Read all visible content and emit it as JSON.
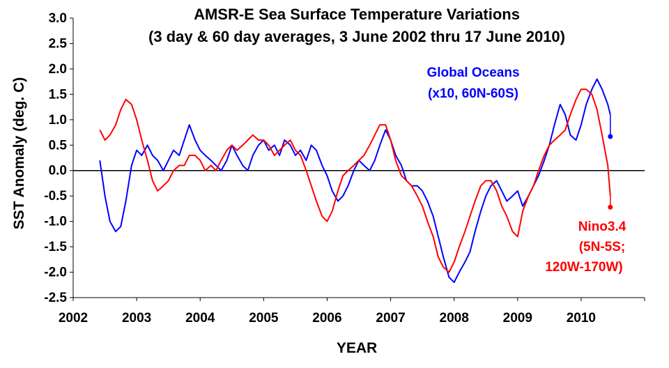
{
  "chart_data": {
    "type": "line",
    "title": "AMSR-E Sea Surface Temperature Variations",
    "subtitle": "(3 day & 60 day averages, 3 June 2002 thru 17 June 2010)",
    "xlabel": "YEAR",
    "ylabel": "SST Anomaly (deg. C)",
    "xlim": [
      2002,
      2011
    ],
    "ylim": [
      -2.5,
      3.0
    ],
    "x_ticks": [
      "2002",
      "2003",
      "2004",
      "2005",
      "2006",
      "2007",
      "2008",
      "2009",
      "2010"
    ],
    "y_ticks": [
      "3.0",
      "2.5",
      "2.0",
      "1.5",
      "1.0",
      "0.5",
      "0.0",
      "-0.5",
      "-1.0",
      "-1.5",
      "-2.0",
      "-2.5"
    ],
    "grid": false,
    "zero_line": true,
    "annotations": [
      {
        "lines": [
          "Global Oceans",
          "(x10, 60N-60S)"
        ],
        "color": "#0000ff"
      },
      {
        "lines": [
          "Nino3.4",
          "(5N-5S;",
          "120W-170W)"
        ],
        "color": "#ff0000"
      }
    ],
    "series": [
      {
        "name": "Global Oceans",
        "color": "#0000ff",
        "x": [
          2002.42,
          2002.5,
          2002.58,
          2002.67,
          2002.75,
          2002.83,
          2002.92,
          2003.0,
          2003.08,
          2003.17,
          2003.25,
          2003.33,
          2003.42,
          2003.5,
          2003.58,
          2003.67,
          2003.75,
          2003.83,
          2003.92,
          2004.0,
          2004.08,
          2004.17,
          2004.25,
          2004.33,
          2004.42,
          2004.5,
          2004.58,
          2004.67,
          2004.75,
          2004.83,
          2004.92,
          2005.0,
          2005.08,
          2005.17,
          2005.25,
          2005.33,
          2005.42,
          2005.5,
          2005.58,
          2005.67,
          2005.75,
          2005.83,
          2005.92,
          2006.0,
          2006.08,
          2006.17,
          2006.25,
          2006.33,
          2006.42,
          2006.5,
          2006.58,
          2006.67,
          2006.75,
          2006.83,
          2006.92,
          2007.0,
          2007.08,
          2007.17,
          2007.25,
          2007.33,
          2007.42,
          2007.5,
          2007.58,
          2007.67,
          2007.75,
          2007.83,
          2007.92,
          2008.0,
          2008.08,
          2008.17,
          2008.25,
          2008.33,
          2008.42,
          2008.5,
          2008.58,
          2008.67,
          2008.75,
          2008.83,
          2008.92,
          2009.0,
          2009.08,
          2009.17,
          2009.25,
          2009.33,
          2009.42,
          2009.5,
          2009.58,
          2009.67,
          2009.75,
          2009.83,
          2009.92,
          2010.0,
          2010.08,
          2010.17,
          2010.25,
          2010.33,
          2010.42,
          2010.46
        ],
        "y": [
          0.2,
          -0.5,
          -1.0,
          -1.2,
          -1.1,
          -0.6,
          0.1,
          0.4,
          0.3,
          0.5,
          0.3,
          0.2,
          0.0,
          0.2,
          0.4,
          0.3,
          0.6,
          0.9,
          0.6,
          0.4,
          0.3,
          0.2,
          0.1,
          0.0,
          0.2,
          0.5,
          0.3,
          0.1,
          0.0,
          0.3,
          0.5,
          0.6,
          0.4,
          0.5,
          0.3,
          0.6,
          0.5,
          0.3,
          0.4,
          0.2,
          0.5,
          0.4,
          0.1,
          -0.1,
          -0.4,
          -0.6,
          -0.5,
          -0.3,
          0.0,
          0.2,
          0.1,
          0.0,
          0.2,
          0.5,
          0.8,
          0.6,
          0.3,
          0.1,
          -0.2,
          -0.3,
          -0.3,
          -0.4,
          -0.6,
          -0.9,
          -1.3,
          -1.7,
          -2.1,
          -2.2,
          -2.0,
          -1.8,
          -1.6,
          -1.2,
          -0.8,
          -0.5,
          -0.3,
          -0.2,
          -0.4,
          -0.6,
          -0.5,
          -0.4,
          -0.7,
          -0.5,
          -0.3,
          -0.1,
          0.2,
          0.5,
          0.9,
          1.3,
          1.1,
          0.7,
          0.6,
          0.9,
          1.3,
          1.6,
          1.8,
          1.6,
          1.3,
          1.1
        ],
        "end_marker": {
          "x": 2010.46,
          "y": 0.67
        }
      },
      {
        "name": "Nino3.4",
        "color": "#ff0000",
        "x": [
          2002.42,
          2002.5,
          2002.58,
          2002.67,
          2002.75,
          2002.83,
          2002.92,
          2003.0,
          2003.08,
          2003.17,
          2003.25,
          2003.33,
          2003.42,
          2003.5,
          2003.58,
          2003.67,
          2003.75,
          2003.83,
          2003.92,
          2004.0,
          2004.08,
          2004.17,
          2004.25,
          2004.33,
          2004.42,
          2004.5,
          2004.58,
          2004.67,
          2004.75,
          2004.83,
          2004.92,
          2005.0,
          2005.08,
          2005.17,
          2005.25,
          2005.33,
          2005.42,
          2005.5,
          2005.58,
          2005.67,
          2005.75,
          2005.83,
          2005.92,
          2006.0,
          2006.08,
          2006.17,
          2006.25,
          2006.33,
          2006.42,
          2006.5,
          2006.58,
          2006.67,
          2006.75,
          2006.83,
          2006.92,
          2007.0,
          2007.08,
          2007.17,
          2007.25,
          2007.33,
          2007.42,
          2007.5,
          2007.58,
          2007.67,
          2007.75,
          2007.83,
          2007.92,
          2008.0,
          2008.08,
          2008.17,
          2008.25,
          2008.33,
          2008.42,
          2008.5,
          2008.58,
          2008.67,
          2008.75,
          2008.83,
          2008.92,
          2009.0,
          2009.08,
          2009.17,
          2009.25,
          2009.33,
          2009.42,
          2009.5,
          2009.58,
          2009.67,
          2009.75,
          2009.83,
          2009.92,
          2010.0,
          2010.08,
          2010.17,
          2010.25,
          2010.33,
          2010.42,
          2010.46
        ],
        "y": [
          0.8,
          0.6,
          0.7,
          0.9,
          1.2,
          1.4,
          1.3,
          1.0,
          0.6,
          0.2,
          -0.2,
          -0.4,
          -0.3,
          -0.2,
          0.0,
          0.1,
          0.1,
          0.3,
          0.3,
          0.2,
          0.0,
          0.1,
          0.0,
          0.2,
          0.4,
          0.5,
          0.4,
          0.5,
          0.6,
          0.7,
          0.6,
          0.6,
          0.5,
          0.3,
          0.4,
          0.5,
          0.6,
          0.4,
          0.3,
          0.0,
          -0.3,
          -0.6,
          -0.9,
          -1.0,
          -0.8,
          -0.4,
          -0.1,
          0.0,
          0.1,
          0.2,
          0.3,
          0.5,
          0.7,
          0.9,
          0.9,
          0.6,
          0.2,
          -0.1,
          -0.2,
          -0.3,
          -0.5,
          -0.7,
          -1.0,
          -1.3,
          -1.7,
          -1.9,
          -2.0,
          -1.8,
          -1.5,
          -1.2,
          -0.9,
          -0.6,
          -0.3,
          -0.2,
          -0.2,
          -0.4,
          -0.7,
          -0.9,
          -1.2,
          -1.3,
          -0.8,
          -0.5,
          -0.3,
          0.0,
          0.3,
          0.5,
          0.6,
          0.7,
          0.8,
          1.1,
          1.4,
          1.6,
          1.6,
          1.5,
          1.2,
          0.7,
          0.1,
          -0.5
        ],
        "end_marker": {
          "x": 2010.46,
          "y": -0.72
        }
      }
    ]
  }
}
